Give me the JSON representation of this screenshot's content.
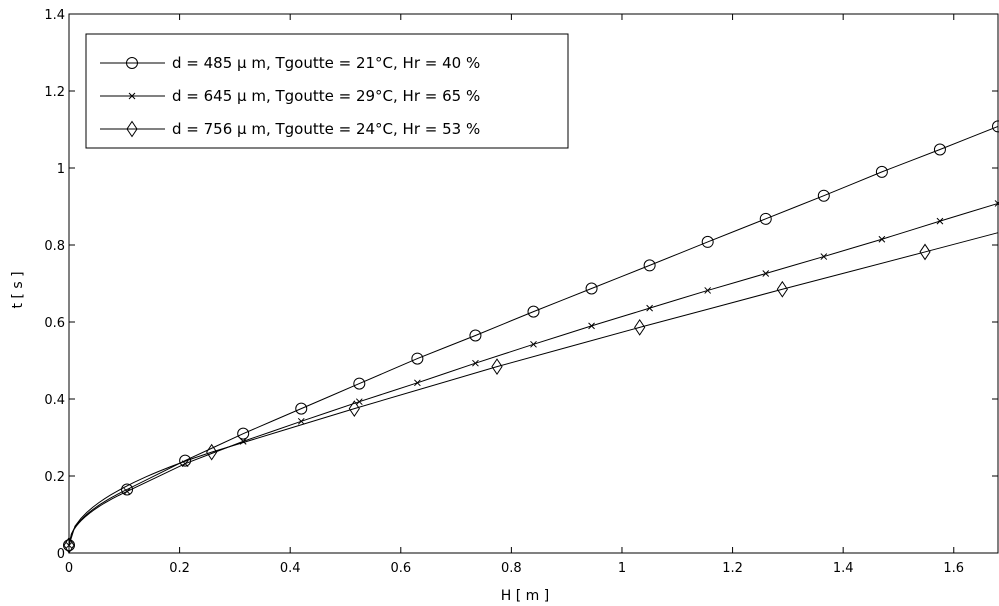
{
  "chart_data": {
    "type": "line",
    "xlabel": "H [ m ]",
    "ylabel": "t [ s ]",
    "xlim": [
      0,
      1.68
    ],
    "ylim": [
      0,
      1.4
    ],
    "x_ticks": [
      "0",
      "0.2",
      "0.4",
      "0.6",
      "0.8",
      "1",
      "1.2",
      "1.4",
      "1.6"
    ],
    "y_ticks": [
      "0",
      "0.2",
      "0.4",
      "0.6",
      "0.8",
      "1",
      "1.2",
      "1.4"
    ],
    "grid": false,
    "legend_position": "top-left",
    "series": [
      {
        "name": "d = 485 μ m, Tgoutte = 21°C, Hr = 40 %",
        "marker": "circle",
        "x": [
          0,
          0.105,
          0.21,
          0.315,
          0.42,
          0.525,
          0.63,
          0.735,
          0.84,
          0.945,
          1.05,
          1.155,
          1.26,
          1.365,
          1.47,
          1.575,
          1.68
        ],
        "y": [
          0.02,
          0.165,
          0.24,
          0.31,
          0.375,
          0.44,
          0.505,
          0.565,
          0.627,
          0.687,
          0.747,
          0.808,
          0.868,
          0.928,
          0.99,
          1.048,
          1.108
        ]
      },
      {
        "name": "d = 645 μ m, Tgoutte = 29°C, Hr = 65 %",
        "marker": "x",
        "x": [
          0,
          0.105,
          0.21,
          0.315,
          0.42,
          0.525,
          0.63,
          0.735,
          0.84,
          0.945,
          1.05,
          1.155,
          1.26,
          1.365,
          1.47,
          1.575,
          1.68
        ],
        "y": [
          0.02,
          0.16,
          0.232,
          0.29,
          0.342,
          0.393,
          0.442,
          0.493,
          0.542,
          0.59,
          0.636,
          0.682,
          0.726,
          0.77,
          0.815,
          0.862,
          0.908
        ]
      },
      {
        "name": "d = 756 μ m, Tgoutte = 24°C, Hr = 53 %",
        "marker": "diamond",
        "x": [
          0,
          0.258,
          0.516,
          0.774,
          1.032,
          1.29,
          1.548
        ],
        "y": [
          0.02,
          0.262,
          0.375,
          0.484,
          0.586,
          0.685,
          0.782
        ],
        "line_extends_to": [
          1.68,
          0.832
        ]
      }
    ]
  }
}
